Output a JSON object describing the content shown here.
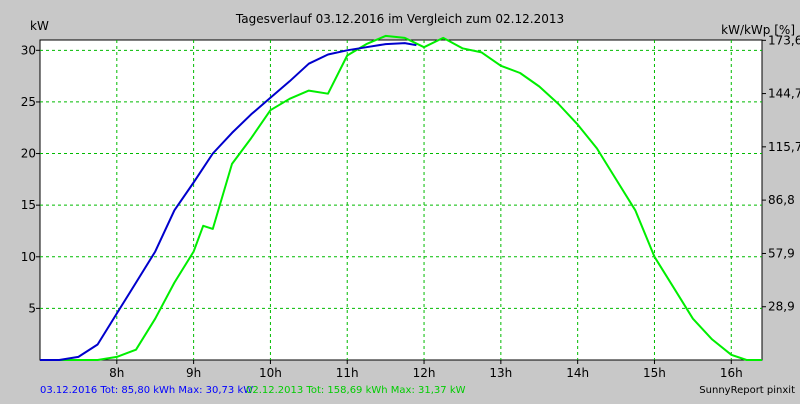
{
  "chart_data": {
    "type": "line",
    "title": "Tagesverlauf 03.12.2016 im Vergleich zum 02.12.2013",
    "ylabel_left": "kW",
    "ylabel_right": "kW/kWp [%]",
    "xlim": [
      7.0,
      16.4
    ],
    "ylim": [
      0,
      31
    ],
    "grid": true,
    "x_ticks": [
      8,
      9,
      10,
      11,
      12,
      13,
      14,
      15,
      16
    ],
    "x_tick_labels": [
      "8h",
      "9h",
      "10h",
      "11h",
      "12h",
      "13h",
      "14h",
      "15h",
      "16h"
    ],
    "y_ticks": [
      5,
      10,
      15,
      20,
      25,
      30
    ],
    "y_tick_labels": [
      "5",
      "10",
      "15",
      "20",
      "25",
      "30"
    ],
    "y_right_ticks": [
      5.16,
      10.32,
      15.49,
      20.65,
      25.81,
      30.97
    ],
    "y_right_tick_labels": [
      "28,9",
      "57,9",
      "86,8",
      "115,7",
      "144,7",
      "173,6"
    ],
    "series": [
      {
        "name": "03.12.2016",
        "color": "#0000cc",
        "x": [
          7.0,
          7.25,
          7.5,
          7.75,
          8.0,
          8.25,
          8.5,
          8.75,
          9.0,
          9.25,
          9.5,
          9.75,
          10.0,
          10.25,
          10.5,
          10.75,
          11.0,
          11.25,
          11.5,
          11.75,
          11.9
        ],
        "y": [
          0,
          0,
          0.3,
          1.5,
          4.5,
          7.5,
          10.5,
          14.5,
          17.2,
          20.0,
          22.0,
          23.8,
          25.4,
          27.0,
          28.7,
          29.6,
          30.0,
          30.3,
          30.6,
          30.7,
          30.5
        ]
      },
      {
        "name": "02.12.2013",
        "color": "#00ee00",
        "x": [
          7.0,
          7.25,
          7.5,
          7.75,
          8.0,
          8.25,
          8.5,
          8.75,
          9.0,
          9.125,
          9.25,
          9.5,
          9.75,
          10.0,
          10.25,
          10.5,
          10.75,
          11.0,
          11.25,
          11.5,
          11.75,
          12.0,
          12.25,
          12.5,
          12.75,
          13.0,
          13.25,
          13.5,
          13.75,
          14.0,
          14.25,
          14.5,
          14.75,
          15.0,
          15.25,
          15.5,
          15.75,
          16.0,
          16.2,
          16.4
        ],
        "y": [
          0,
          0,
          0,
          0,
          0.3,
          1.0,
          4.0,
          7.5,
          10.5,
          13.0,
          12.7,
          19.0,
          21.5,
          24.2,
          25.3,
          26.1,
          25.8,
          29.5,
          30.6,
          31.4,
          31.2,
          30.3,
          31.2,
          30.2,
          29.8,
          28.5,
          27.8,
          26.5,
          24.8,
          22.8,
          20.5,
          17.5,
          14.5,
          10.0,
          7.0,
          4.0,
          2.0,
          0.5,
          0,
          0
        ]
      }
    ]
  },
  "legend": {
    "blue_text": "03.12.2016 Tot: 85,80 kWh Max: 30,73 kW",
    "green_text": "02.12.2013 Tot: 158,69 kWh Max: 31,37 kW"
  },
  "credit": "SunnyReport pinxit",
  "colors": {
    "background": "#c8c8c8",
    "plot": "#ffffff",
    "grid": "#00bb00"
  }
}
